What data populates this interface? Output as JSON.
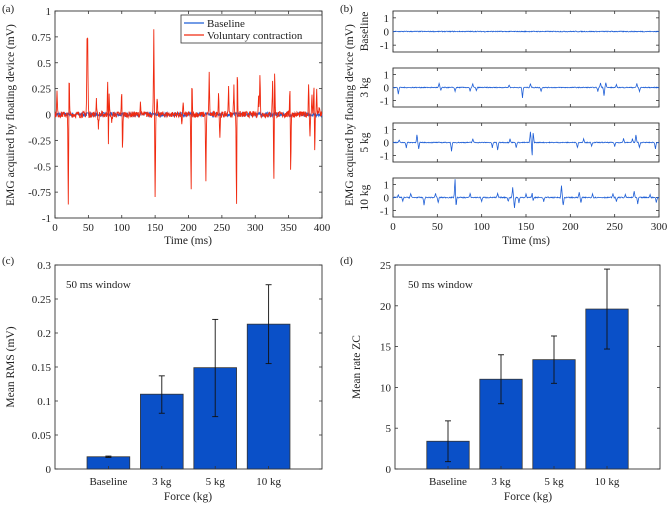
{
  "chart_data": [
    {
      "id": "a",
      "tag": "(a)",
      "type": "line",
      "xlabel": "Time (ms)",
      "ylabel": "EMG acquired by floating  device (mV)",
      "xlim": [
        0,
        400
      ],
      "ylim": [
        -1,
        1
      ],
      "xticks": [
        0,
        50,
        100,
        150,
        200,
        250,
        300,
        350,
        400
      ],
      "xtick_labels": [
        "0",
        "50",
        "100",
        "150",
        "200",
        "250",
        "300",
        "350",
        "400"
      ],
      "yticks": [
        -1,
        -0.75,
        -0.5,
        -0.25,
        0,
        0.25,
        0.5,
        0.75,
        1
      ],
      "ytick_labels": [
        "-1",
        "-0.75",
        "-0.5",
        "-0.25",
        "0",
        "0.25",
        "0.5",
        "0.75",
        "1"
      ],
      "legend": {
        "placement": "top-right",
        "entries": [
          "Baseline",
          "Voluntary contraction"
        ]
      },
      "series": [
        {
          "name": "Baseline",
          "color": "#1f5fd6",
          "noise": 0.02,
          "spikes": []
        },
        {
          "name": "Voluntary contraction",
          "color": "#f02a10",
          "noise": 0.03,
          "spikes": [
            [
              3,
              0.22
            ],
            [
              20,
              -0.95
            ],
            [
              21,
              0.47
            ],
            [
              48,
              0.62
            ],
            [
              49,
              0.63
            ],
            [
              62,
              0.15
            ],
            [
              65,
              -0.13
            ],
            [
              79,
              0.41
            ],
            [
              80,
              -0.41
            ],
            [
              81,
              0.25
            ],
            [
              85,
              -0.09
            ],
            [
              100,
              0.28
            ],
            [
              101,
              -0.38
            ],
            [
              128,
              0.11
            ],
            [
              148,
              0.83
            ],
            [
              150,
              -0.8
            ],
            [
              153,
              0.15
            ],
            [
              190,
              -0.12
            ],
            [
              192,
              0.13
            ],
            [
              204,
              -0.8
            ],
            [
              205,
              0.4
            ],
            [
              226,
              -0.62
            ],
            [
              231,
              0.39
            ],
            [
              245,
              0.21
            ],
            [
              247,
              -0.22
            ],
            [
              260,
              0.27
            ],
            [
              268,
              0.3
            ],
            [
              272,
              -0.94
            ],
            [
              273,
              0.53
            ],
            [
              305,
              0.17
            ],
            [
              307,
              0.4
            ],
            [
              326,
              0.33
            ],
            [
              328,
              -0.73
            ],
            [
              329,
              0.53
            ],
            [
              352,
              0.34
            ],
            [
              353,
              -0.59
            ],
            [
              380,
              0.29
            ],
            [
              382,
              -0.23
            ],
            [
              385,
              0.2
            ],
            [
              388,
              0.33
            ],
            [
              389,
              -0.38
            ],
            [
              392,
              0.22
            ],
            [
              396,
              0.08
            ]
          ]
        }
      ]
    },
    {
      "id": "b",
      "tag": "(b)",
      "type": "line",
      "xlabel": "Time (ms)",
      "ylabel": "EMG acquired by floating  device (mV)",
      "xlim": [
        0,
        300
      ],
      "ylim": [
        -1.5,
        1.5
      ],
      "xticks": [
        0,
        50,
        100,
        150,
        200,
        250,
        300
      ],
      "xtick_labels": [
        "0",
        "50",
        "100",
        "150",
        "200",
        "250",
        "300"
      ],
      "yticks": [
        -1,
        0,
        1
      ],
      "ytick_labels": [
        "-1",
        "0",
        "1"
      ],
      "color": "#1f5fd6",
      "panels": [
        {
          "name": "Baseline",
          "noise": 0.03,
          "spikes": []
        },
        {
          "name": "3 kg",
          "noise": 0.03,
          "spikes": [
            [
              6,
              -0.5
            ],
            [
              52,
              0.3
            ],
            [
              54,
              -0.2
            ],
            [
              70,
              -0.3
            ],
            [
              87,
              -0.3
            ],
            [
              90,
              0.3
            ],
            [
              94,
              -0.25
            ],
            [
              131,
              0.2
            ],
            [
              146,
              -0.8
            ],
            [
              155,
              0.3
            ],
            [
              167,
              -0.3
            ],
            [
              231,
              -0.3
            ],
            [
              234,
              0.35
            ],
            [
              238,
              -0.6
            ],
            [
              240,
              0.4
            ],
            [
              252,
              0.2
            ],
            [
              275,
              0.3
            ],
            [
              278,
              -0.3
            ]
          ]
        },
        {
          "name": "5 kg",
          "noise": 0.03,
          "spikes": [
            [
              7,
              0.2
            ],
            [
              15,
              -0.4
            ],
            [
              27,
              0.6
            ],
            [
              29,
              -0.5
            ],
            [
              66,
              -0.7
            ],
            [
              90,
              0.3
            ],
            [
              112,
              -0.4
            ],
            [
              118,
              -0.6
            ],
            [
              132,
              0.3
            ],
            [
              139,
              -0.4
            ],
            [
              155,
              0.8
            ],
            [
              157,
              -1.1
            ],
            [
              158,
              0.9
            ],
            [
              208,
              -0.4
            ],
            [
              215,
              0.3
            ],
            [
              224,
              -0.3
            ],
            [
              250,
              -0.3
            ],
            [
              260,
              0.3
            ],
            [
              270,
              0.3
            ],
            [
              274,
              0.6
            ],
            [
              278,
              -0.4
            ],
            [
              296,
              -0.5
            ]
          ]
        },
        {
          "name": "10 kg",
          "noise": 0.04,
          "spikes": [
            [
              6,
              0.2
            ],
            [
              11,
              -0.3
            ],
            [
              20,
              0.3
            ],
            [
              35,
              -0.6
            ],
            [
              48,
              0.3
            ],
            [
              51,
              -0.4
            ],
            [
              70,
              1.5
            ],
            [
              71,
              -0.8
            ],
            [
              87,
              0.3
            ],
            [
              100,
              -0.3
            ],
            [
              118,
              0.3
            ],
            [
              130,
              -0.3
            ],
            [
              135,
              0.8
            ],
            [
              137,
              -0.8
            ],
            [
              142,
              -0.4
            ],
            [
              150,
              0.3
            ],
            [
              157,
              0.4
            ],
            [
              158,
              -0.3
            ],
            [
              170,
              -0.3
            ],
            [
              190,
              0.9
            ],
            [
              192,
              -0.6
            ],
            [
              210,
              0.4
            ],
            [
              212,
              -0.4
            ],
            [
              225,
              0.3
            ],
            [
              248,
              0.3
            ],
            [
              252,
              -0.3
            ],
            [
              262,
              0.2
            ],
            [
              272,
              0.5
            ],
            [
              276,
              -0.5
            ],
            [
              290,
              0.2
            ],
            [
              297,
              -0.4
            ]
          ]
        }
      ]
    },
    {
      "id": "c",
      "tag": "(c)",
      "type": "bar",
      "annotation": "50 ms window",
      "xlabel": "Force (kg)",
      "ylabel": "Mean RMS (mV)",
      "categories": [
        "Baseline",
        "3 kg",
        "5 kg",
        "10 kg"
      ],
      "values": [
        0.018,
        0.11,
        0.149,
        0.213
      ],
      "err_low": [
        0.017,
        0.082,
        0.077,
        0.155
      ],
      "err_high": [
        0.019,
        0.137,
        0.22,
        0.271
      ],
      "ylim": [
        0,
        0.3
      ],
      "yticks": [
        0,
        0.05,
        0.1,
        0.15,
        0.2,
        0.25,
        0.3
      ],
      "ytick_labels": [
        "0",
        "0.05",
        "0.1",
        "0.15",
        "0.2",
        "0.25",
        "0.3"
      ],
      "color": "#0a50c8"
    },
    {
      "id": "d",
      "tag": "(d)",
      "type": "bar",
      "annotation": "50 ms window",
      "xlabel": "Force (kg)",
      "ylabel": "Mean rate ZC",
      "categories": [
        "Baseline",
        "3 kg",
        "5 kg",
        "10 kg"
      ],
      "values": [
        3.4,
        11.0,
        13.4,
        19.6
      ],
      "err_low": [
        0.9,
        8.0,
        10.5,
        14.7
      ],
      "err_high": [
        5.9,
        14.0,
        16.3,
        24.5
      ],
      "ylim": [
        0,
        25
      ],
      "yticks": [
        0,
        5,
        10,
        15,
        20,
        25
      ],
      "ytick_labels": [
        "0",
        "5",
        "10",
        "15",
        "20",
        "25"
      ],
      "color": "#0a50c8"
    }
  ]
}
